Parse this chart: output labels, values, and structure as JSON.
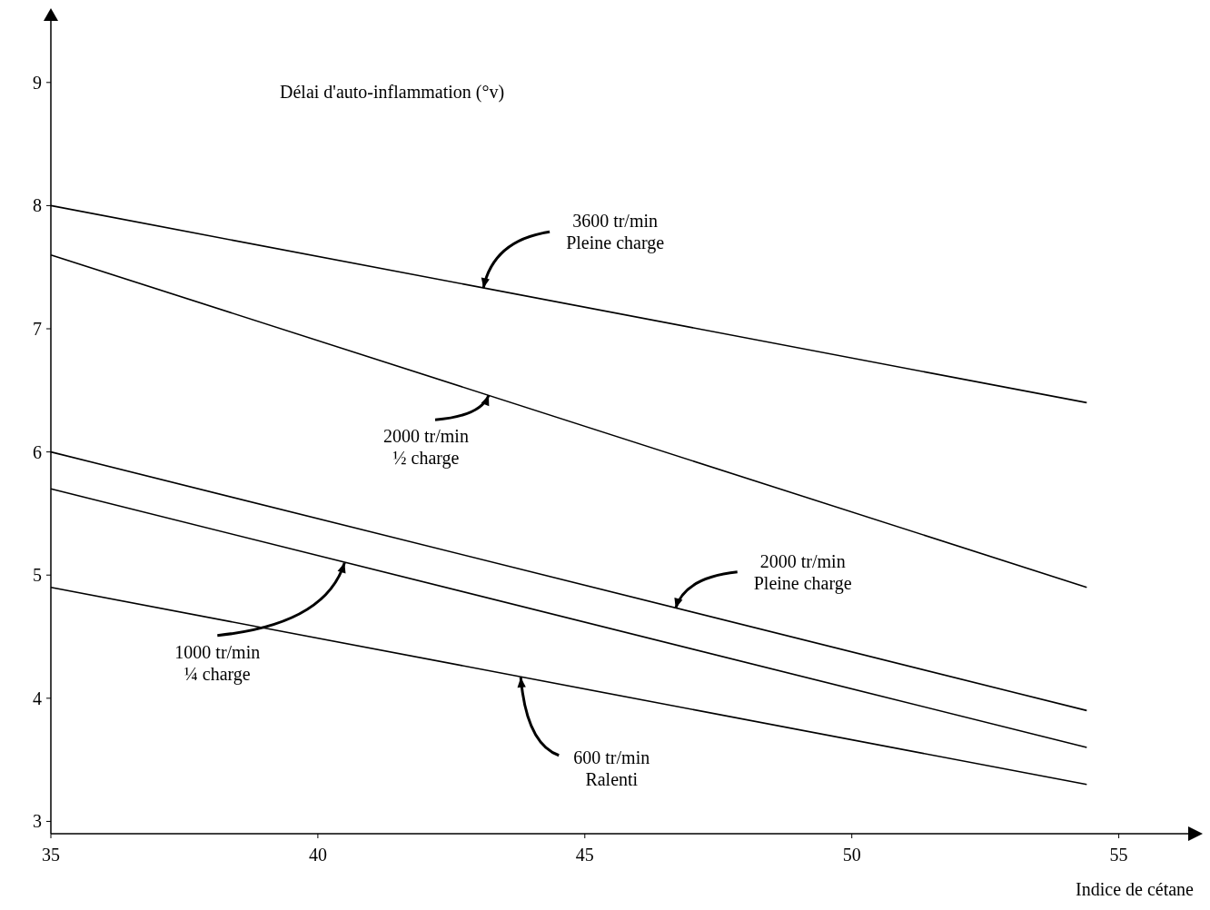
{
  "chart_data": {
    "type": "line",
    "ylabel": "Délai d'auto-inflammation (°v)",
    "xlabel": "Indice de cétane",
    "xlim": [
      35,
      56.3
    ],
    "ylim": [
      2.9,
      9.5
    ],
    "xticks": [
      35,
      40,
      45,
      50,
      55
    ],
    "yticks": [
      3,
      4,
      5,
      6,
      7,
      8,
      9
    ],
    "legend": false,
    "x": [
      35,
      54.4
    ],
    "series": [
      {
        "color": "#000000",
        "values": [
          8.0,
          6.4
        ]
      },
      {
        "color": "#000000",
        "values": [
          7.6,
          4.9
        ]
      },
      {
        "color": "#000000",
        "values": [
          6.0,
          3.9
        ]
      },
      {
        "color": "#000000",
        "values": [
          5.7,
          3.6
        ]
      },
      {
        "color": "#000000",
        "values": [
          4.9,
          3.3
        ]
      }
    ],
    "annotations": [
      {
        "text": "3600 tr/min\nPleine charge",
        "x": 43.1,
        "y": 7.33
      },
      {
        "text": "2000 tr/min\n½ charge",
        "x": 43.2,
        "y": 6.46
      },
      {
        "text": "2000 tr/min\nPleine charge",
        "x": 46.7,
        "y": 4.73
      },
      {
        "text": "1000 tr/min\n¼ charge",
        "x": 40.5,
        "y": 5.1
      },
      {
        "text": "600 tr/min\nRalenti",
        "x": 43.8,
        "y": 4.17
      }
    ]
  }
}
